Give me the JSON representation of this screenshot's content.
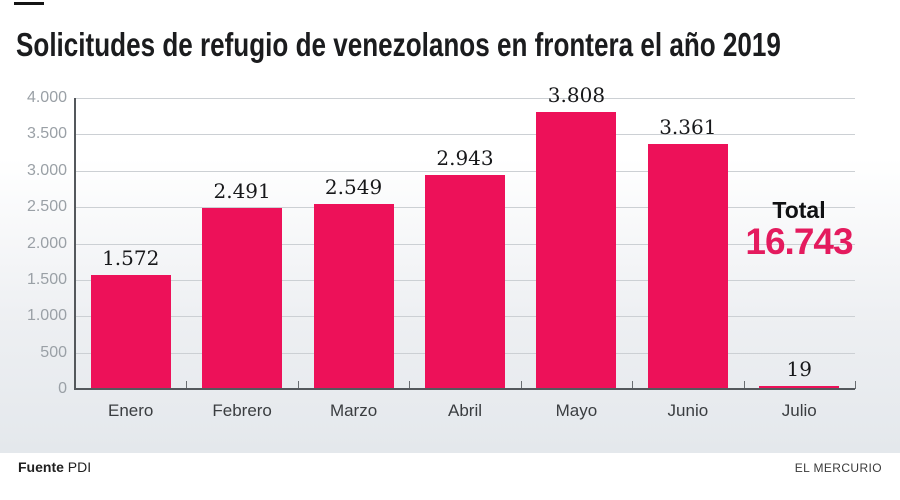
{
  "header": {
    "title": "Solicitudes de refugio de venezolanos en frontera el año 2019"
  },
  "chart_data": {
    "type": "bar",
    "title": "Solicitudes de refugio de venezolanos en frontera el año 2019",
    "categories": [
      "Enero",
      "Febrero",
      "Marzo",
      "Abril",
      "Mayo",
      "Junio",
      "Julio"
    ],
    "values": [
      1572,
      2491,
      2549,
      2943,
      3808,
      3361,
      19
    ],
    "value_labels": [
      "1.572",
      "2.491",
      "2.549",
      "2.943",
      "3.808",
      "3.361",
      "19"
    ],
    "xlabel": "",
    "ylabel": "",
    "ylim": [
      0,
      4000
    ],
    "y_tick_interval": 500,
    "y_tick_labels_top_to_bottom": [
      "4.000",
      "3.500",
      "3.000",
      "2.500",
      "2.000",
      "1.500",
      "1.000",
      "500",
      "0"
    ],
    "grid": true,
    "legend": "none",
    "bar_color": "#ed1159"
  },
  "total": {
    "label": "Total",
    "value": "16.743",
    "value_color": "#e41b5e"
  },
  "footer": {
    "source_label": "Fuente",
    "source": "PDI",
    "credit": "EL MERCURIO"
  }
}
